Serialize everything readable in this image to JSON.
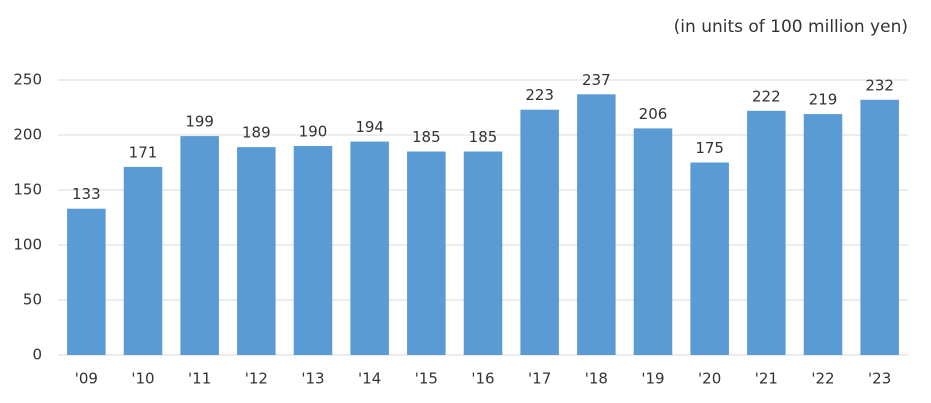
{
  "chart_data": {
    "type": "bar",
    "subtitle": "(in units of 100 million yen)",
    "categories": [
      "'09",
      "'10",
      "'11",
      "'12",
      "'13",
      "'14",
      "'15",
      "'16",
      "'17",
      "'18",
      "'19",
      "'20",
      "'21",
      "'22",
      "'23"
    ],
    "values": [
      133,
      171,
      199,
      189,
      190,
      194,
      185,
      185,
      223,
      237,
      206,
      175,
      222,
      219,
      232
    ],
    "color": "#5b9bd5",
    "ylim": [
      0,
      250
    ],
    "yticks": [
      0,
      50,
      100,
      150,
      200,
      250
    ],
    "grid": true
  }
}
